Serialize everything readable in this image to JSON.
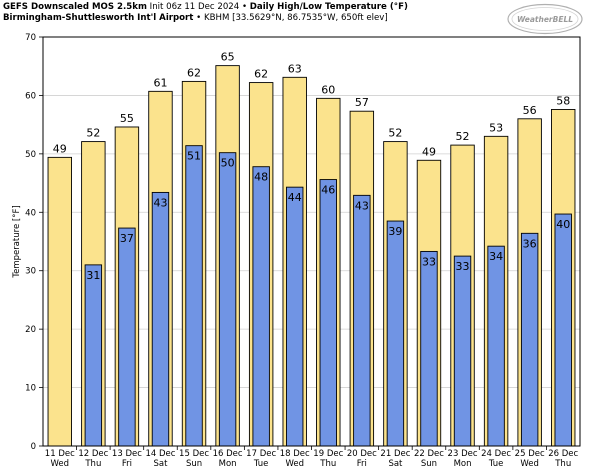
{
  "header": {
    "model": "GEFS Downscaled MOS 2.5km",
    "init": "Init 06z 11 Dec 2024",
    "product": "Daily High/Low Temperature (°F)",
    "station_name": "Birmingham-Shuttlesworth Int'l Airport",
    "station_info": "KBHM [33.5629°N, 86.7535°W, 650ft elev]",
    "separator": "•",
    "logo_text": "WeatherBELL"
  },
  "chart_data": {
    "type": "bar",
    "ylabel": "Temperature [°F]",
    "ylim": [
      0,
      70
    ],
    "yticks": [
      0,
      10,
      20,
      30,
      40,
      50,
      60,
      70
    ],
    "grid": true,
    "categories": [
      [
        "11 Dec",
        "Wed"
      ],
      [
        "12 Dec",
        "Thu"
      ],
      [
        "13 Dec",
        "Fri"
      ],
      [
        "14 Dec",
        "Sat"
      ],
      [
        "15 Dec",
        "Sun"
      ],
      [
        "16 Dec",
        "Mon"
      ],
      [
        "17 Dec",
        "Tue"
      ],
      [
        "18 Dec",
        "Wed"
      ],
      [
        "19 Dec",
        "Thu"
      ],
      [
        "20 Dec",
        "Fri"
      ],
      [
        "21 Dec",
        "Sat"
      ],
      [
        "22 Dec",
        "Sun"
      ],
      [
        "23 Dec",
        "Mon"
      ],
      [
        "24 Dec",
        "Tue"
      ],
      [
        "25 Dec",
        "Wed"
      ],
      [
        "26 Dec",
        "Thu"
      ]
    ],
    "series": [
      {
        "values": [
          49.4,
          52.1,
          54.6,
          60.7,
          62.4,
          65.1,
          62.2,
          63.1,
          59.5,
          57.3,
          52.1,
          48.9,
          51.5,
          53.0,
          56.0,
          57.6
        ],
        "labels": [
          "49",
          "52",
          "55",
          "61",
          "62",
          "65",
          "62",
          "63",
          "60",
          "57",
          "52",
          "49",
          "52",
          "53",
          "56",
          "58"
        ],
        "color": "#fbe38d"
      },
      {
        "values": [
          null,
          31.0,
          37.3,
          43.4,
          51.4,
          50.2,
          47.8,
          44.3,
          45.6,
          42.9,
          38.5,
          33.3,
          32.5,
          34.2,
          36.4,
          39.7
        ],
        "labels": [
          null,
          "31",
          "37",
          "43",
          "51",
          "50",
          "48",
          "44",
          "46",
          "43",
          "39",
          "33",
          "33",
          "34",
          "36",
          "40"
        ],
        "color": "#7094e4"
      }
    ]
  }
}
